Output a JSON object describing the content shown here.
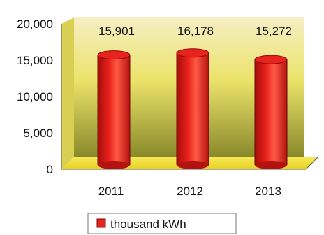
{
  "chart_data": {
    "type": "bar",
    "categories": [
      "2011",
      "2012",
      "2013"
    ],
    "series": [
      {
        "name": "thousand kWh",
        "values": [
          15901,
          16178,
          15272
        ]
      }
    ],
    "value_labels": [
      "15,901",
      "16,178",
      "15,272"
    ],
    "y_ticks": [
      "0",
      "5,000",
      "10,000",
      "15,000",
      "20,000"
    ],
    "ylim": [
      0,
      20000
    ],
    "legend_position": "bottom",
    "style": "3d-cylinder",
    "colors": {
      "bar": "#e8221c",
      "bar_dark": "#a50d0a",
      "bar_light": "#ff6a55",
      "wall_top": "#f6eec4",
      "wall_mid": "#ece36a",
      "wall_bottom": "#8a8a2c",
      "floor": "#f3e23a"
    }
  }
}
